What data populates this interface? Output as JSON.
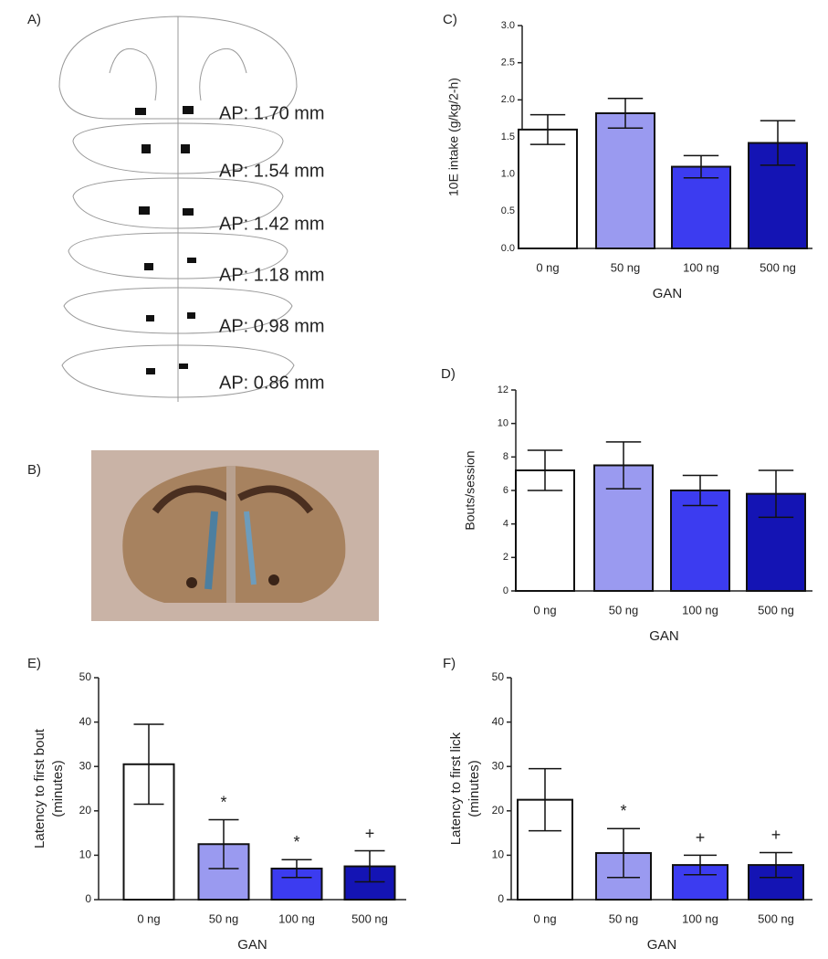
{
  "panel_a": {
    "label": "A)",
    "levels": [
      "AP: 1.70 mm",
      "AP: 1.54 mm",
      "AP: 1.42 mm",
      "AP: 1.18 mm",
      "AP: 0.98 mm",
      "AP: 0.86 mm"
    ]
  },
  "panel_b": {
    "label": "B)"
  },
  "chart_data": [
    {
      "type": "bar",
      "label": "C)",
      "ylabel": "10E intake (g/kg/2-h)",
      "xlabel": "GAN",
      "categories": [
        "0 ng",
        "50 ng",
        "100 ng",
        "500 ng"
      ],
      "values": [
        1.6,
        1.82,
        1.1,
        1.42
      ],
      "errors": [
        0.2,
        0.2,
        0.15,
        0.3
      ],
      "colors": [
        "#ffffff",
        "#9a9af0",
        "#3c3cf0",
        "#1414b4"
      ],
      "ylim": [
        0,
        3
      ],
      "yticks": [
        {
          "value": 0,
          "label": "0.0"
        },
        {
          "value": 0.5,
          "label": "0.5"
        },
        {
          "value": 1,
          "label": "1.0"
        },
        {
          "value": 1.5,
          "label": "1.5"
        },
        {
          "value": 2,
          "label": "2.0"
        },
        {
          "value": 2.5,
          "label": "2.5"
        },
        {
          "value": 3,
          "label": "3.0"
        }
      ]
    },
    {
      "type": "bar",
      "label": "D)",
      "ylabel": "Bouts/session",
      "xlabel": "GAN",
      "categories": [
        "0 ng",
        "50 ng",
        "100 ng",
        "500 ng"
      ],
      "values": [
        7.2,
        7.5,
        6.0,
        5.8
      ],
      "errors": [
        1.2,
        1.4,
        0.9,
        1.4
      ],
      "colors": [
        "#ffffff",
        "#9a9af0",
        "#3c3cf0",
        "#1414b4"
      ],
      "ylim": [
        0,
        12
      ],
      "yticks": [
        0,
        2,
        4,
        6,
        8,
        10,
        12
      ]
    },
    {
      "type": "bar",
      "label": "E)",
      "ylabel": [
        "Latency to first bout",
        "(minutes)"
      ],
      "xlabel": "GAN",
      "categories": [
        "0 ng",
        "50 ng",
        "100 ng",
        "500 ng"
      ],
      "values": [
        30.5,
        12.5,
        7,
        7.5
      ],
      "errors": [
        9,
        5.5,
        2,
        3.5
      ],
      "annotations": [
        null,
        "*",
        "*",
        "+"
      ],
      "colors": [
        "#ffffff",
        "#9a9af0",
        "#3c3cf0",
        "#1414b4"
      ],
      "ylim": [
        0,
        50
      ],
      "yticks": [
        0,
        10,
        20,
        30,
        40,
        50
      ]
    },
    {
      "type": "bar",
      "label": "F)",
      "ylabel": [
        "Latency to first lick",
        "(minutes)"
      ],
      "xlabel": "GAN",
      "categories": [
        "0 ng",
        "50 ng",
        "100 ng",
        "500 ng"
      ],
      "values": [
        22.5,
        10.5,
        7.8,
        7.8
      ],
      "errors": [
        7,
        5.5,
        2.2,
        2.8
      ],
      "annotations": [
        null,
        "*",
        "+",
        "+"
      ],
      "colors": [
        "#ffffff",
        "#9a9af0",
        "#3c3cf0",
        "#1414b4"
      ],
      "ylim": [
        0,
        50
      ],
      "yticks": [
        0,
        10,
        20,
        30,
        40,
        50
      ]
    }
  ]
}
